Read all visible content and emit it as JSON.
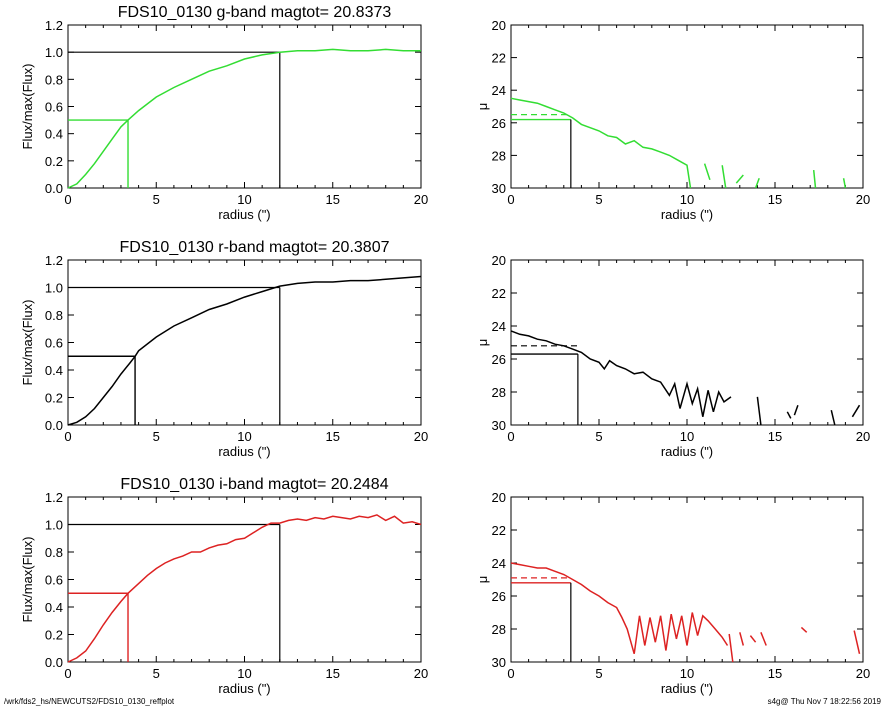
{
  "footer": {
    "path": "/wrk/fds2_hs/NEWCUTS2/FDS10_0130_reffplot",
    "stamp": "s4g@  Thu Nov  7 18:22:56 2019"
  },
  "chart_data": [
    {
      "type": "line",
      "panel": "growth",
      "band": "g",
      "color": "#33dd33",
      "title": "FDS10_0130 g-band  magtot=     20.8373",
      "xlabel": "radius (\")",
      "ylabel": "Flux/max(Flux)",
      "xlim": [
        0,
        20
      ],
      "ylim": [
        0,
        1.2
      ],
      "xticks": [
        "0",
        "5",
        "10",
        "15",
        "20"
      ],
      "yticks": [
        "0.0",
        "0.2",
        "0.4",
        "0.6",
        "0.8",
        "1.0",
        "1.2"
      ],
      "x": [
        0,
        0.5,
        1,
        1.5,
        2,
        2.5,
        3,
        3.4,
        4,
        5,
        6,
        7,
        8,
        9,
        10,
        11,
        12,
        13,
        14,
        15,
        16,
        17,
        18,
        19,
        20
      ],
      "y": [
        0,
        0.03,
        0.1,
        0.18,
        0.27,
        0.36,
        0.45,
        0.5,
        0.57,
        0.67,
        0.74,
        0.8,
        0.86,
        0.9,
        0.95,
        0.98,
        1.0,
        1.01,
        1.01,
        1.02,
        1.01,
        1.01,
        1.02,
        1.01,
        1.01
      ],
      "reff": 3.4,
      "r_full": 12.0
    },
    {
      "type": "line",
      "panel": "profile",
      "band": "g",
      "color": "#33dd33",
      "xlabel": "radius (\")",
      "ylabel": "μ",
      "xlim": [
        0,
        20
      ],
      "ylim": [
        30,
        20
      ],
      "xticks": [
        "0",
        "5",
        "10",
        "15",
        "20"
      ],
      "yticks": [
        "20",
        "22",
        "24",
        "26",
        "28",
        "30"
      ],
      "segments": [
        [
          [
            0,
            24.5
          ],
          [
            0.5,
            24.6
          ],
          [
            1,
            24.7
          ],
          [
            1.5,
            24.8
          ],
          [
            2,
            25.0
          ],
          [
            2.5,
            25.2
          ],
          [
            3,
            25.4
          ],
          [
            3.5,
            25.7
          ],
          [
            4,
            26.1
          ],
          [
            4.5,
            26.3
          ],
          [
            5,
            26.5
          ],
          [
            5.5,
            26.8
          ],
          [
            6,
            26.9
          ],
          [
            6.5,
            27.3
          ],
          [
            7,
            27.1
          ],
          [
            7.5,
            27.5
          ],
          [
            8,
            27.6
          ],
          [
            8.5,
            27.8
          ],
          [
            9,
            28.0
          ],
          [
            9.5,
            28.3
          ],
          [
            10,
            28.6
          ],
          [
            10.2,
            30.0
          ]
        ],
        [
          [
            11,
            28.5
          ],
          [
            11.3,
            29.5
          ]
        ],
        [
          [
            12,
            28.6
          ],
          [
            12.2,
            30.0
          ]
        ],
        [
          [
            12.8,
            29.7
          ],
          [
            13.2,
            29.2
          ]
        ],
        [
          [
            13.9,
            30.0
          ],
          [
            14.1,
            29.4
          ]
        ],
        [
          [
            17.2,
            28.9
          ],
          [
            17.3,
            30.0
          ]
        ],
        [
          [
            18.9,
            29.4
          ],
          [
            19.0,
            30.0
          ]
        ]
      ],
      "mu_mean": 25.5,
      "mu_eff": 25.8,
      "reff": 3.4
    },
    {
      "type": "line",
      "panel": "growth",
      "band": "r",
      "color": "#000000",
      "title": "FDS10_0130 r-band  magtot=     20.3807",
      "xlabel": "radius (\")",
      "ylabel": "Flux/max(Flux)",
      "xlim": [
        0,
        20
      ],
      "ylim": [
        0,
        1.2
      ],
      "xticks": [
        "0",
        "5",
        "10",
        "15",
        "20"
      ],
      "yticks": [
        "0.0",
        "0.2",
        "0.4",
        "0.6",
        "0.8",
        "1.0",
        "1.2"
      ],
      "x": [
        0,
        0.5,
        1,
        1.5,
        2,
        2.5,
        3,
        3.5,
        3.8,
        4,
        5,
        6,
        7,
        8,
        9,
        10,
        11,
        12,
        13,
        14,
        15,
        16,
        17,
        18,
        19,
        20
      ],
      "y": [
        0,
        0.02,
        0.06,
        0.12,
        0.2,
        0.28,
        0.37,
        0.45,
        0.5,
        0.54,
        0.64,
        0.72,
        0.78,
        0.84,
        0.88,
        0.93,
        0.97,
        1.01,
        1.03,
        1.04,
        1.04,
        1.05,
        1.05,
        1.06,
        1.07,
        1.08
      ],
      "reff": 3.8,
      "r_full": 12.0
    },
    {
      "type": "line",
      "panel": "profile",
      "band": "r",
      "color": "#000000",
      "xlabel": "radius (\")",
      "ylabel": "μ",
      "xlim": [
        0,
        20
      ],
      "ylim": [
        30,
        20
      ],
      "xticks": [
        "0",
        "5",
        "10",
        "15",
        "20"
      ],
      "yticks": [
        "20",
        "22",
        "24",
        "26",
        "28",
        "30"
      ],
      "segments": [
        [
          [
            0,
            24.3
          ],
          [
            0.5,
            24.5
          ],
          [
            1,
            24.6
          ],
          [
            1.5,
            24.8
          ],
          [
            2,
            24.9
          ],
          [
            2.5,
            25.1
          ],
          [
            3,
            25.2
          ],
          [
            3.5,
            25.4
          ],
          [
            4,
            25.6
          ],
          [
            4.5,
            26.0
          ],
          [
            5,
            26.2
          ],
          [
            5.3,
            26.6
          ],
          [
            5.6,
            26.1
          ],
          [
            6,
            26.4
          ],
          [
            6.5,
            26.6
          ],
          [
            7,
            26.9
          ],
          [
            7.5,
            26.8
          ],
          [
            8,
            27.2
          ],
          [
            8.5,
            27.4
          ],
          [
            9,
            28.2
          ],
          [
            9.3,
            27.5
          ],
          [
            9.6,
            29.0
          ],
          [
            10,
            27.5
          ],
          [
            10.3,
            28.7
          ],
          [
            10.6,
            27.8
          ],
          [
            10.9,
            29.5
          ],
          [
            11.2,
            27.9
          ],
          [
            11.5,
            29.2
          ],
          [
            11.8,
            28.0
          ],
          [
            12.1,
            28.6
          ],
          [
            12.5,
            28.3
          ]
        ],
        [
          [
            14.0,
            28.3
          ],
          [
            14.2,
            30.0
          ]
        ],
        [
          [
            15.7,
            29.2
          ],
          [
            15.9,
            29.6
          ]
        ],
        [
          [
            16.1,
            29.4
          ],
          [
            16.3,
            28.8
          ]
        ],
        [
          [
            18.2,
            29.1
          ],
          [
            18.4,
            30.0
          ]
        ],
        [
          [
            19.4,
            29.5
          ],
          [
            19.8,
            28.8
          ]
        ]
      ],
      "mu_mean": 25.2,
      "mu_eff": 25.7,
      "reff": 3.8
    },
    {
      "type": "line",
      "panel": "growth",
      "band": "i",
      "color": "#dd2222",
      "title": "FDS10_0130 i-band  magtot=     20.2484",
      "xlabel": "radius (\")",
      "ylabel": "Flux/max(Flux)",
      "xlim": [
        0,
        20
      ],
      "ylim": [
        0,
        1.2
      ],
      "xticks": [
        "0",
        "5",
        "10",
        "15",
        "20"
      ],
      "yticks": [
        "0.0",
        "0.2",
        "0.4",
        "0.6",
        "0.8",
        "1.0",
        "1.2"
      ],
      "x": [
        0,
        0.5,
        1,
        1.5,
        2,
        2.5,
        3,
        3.4,
        4,
        4.5,
        5,
        5.5,
        6,
        6.5,
        7,
        7.5,
        8,
        8.5,
        9,
        9.5,
        10,
        10.5,
        11,
        11.5,
        12,
        12.5,
        13,
        13.5,
        14,
        14.5,
        15,
        15.5,
        16,
        16.5,
        17,
        17.5,
        18,
        18.5,
        19,
        19.5,
        20
      ],
      "y": [
        0,
        0.03,
        0.08,
        0.17,
        0.27,
        0.36,
        0.44,
        0.5,
        0.57,
        0.63,
        0.68,
        0.72,
        0.75,
        0.77,
        0.8,
        0.8,
        0.83,
        0.85,
        0.86,
        0.89,
        0.9,
        0.94,
        0.98,
        1.01,
        1.01,
        1.03,
        1.04,
        1.03,
        1.05,
        1.04,
        1.06,
        1.05,
        1.04,
        1.06,
        1.05,
        1.07,
        1.03,
        1.06,
        1.01,
        1.02,
        1.0
      ],
      "reff": 3.4,
      "r_full": 12.0
    },
    {
      "type": "line",
      "panel": "profile",
      "band": "i",
      "color": "#dd2222",
      "xlabel": "radius (\")",
      "ylabel": "μ",
      "xlim": [
        0,
        20
      ],
      "ylim": [
        30,
        20
      ],
      "xticks": [
        "0",
        "5",
        "10",
        "15",
        "20"
      ],
      "yticks": [
        "20",
        "22",
        "24",
        "26",
        "28",
        "30"
      ],
      "segments": [
        [
          [
            0,
            24.0
          ],
          [
            0.5,
            24.1
          ],
          [
            1,
            24.2
          ],
          [
            1.5,
            24.3
          ],
          [
            2,
            24.3
          ],
          [
            2.5,
            24.5
          ],
          [
            3,
            24.7
          ],
          [
            3.5,
            25.0
          ],
          [
            4,
            25.3
          ],
          [
            4.5,
            25.7
          ],
          [
            5,
            26.0
          ],
          [
            5.5,
            26.4
          ],
          [
            6,
            26.7
          ],
          [
            6.3,
            27.3
          ],
          [
            6.6,
            28.0
          ],
          [
            7.0,
            29.5
          ],
          [
            7.3,
            27.2
          ],
          [
            7.6,
            29.0
          ],
          [
            7.9,
            27.3
          ],
          [
            8.2,
            28.8
          ],
          [
            8.5,
            27.2
          ],
          [
            8.8,
            29.3
          ],
          [
            9.1,
            27.1
          ],
          [
            9.4,
            28.6
          ],
          [
            9.7,
            27.2
          ],
          [
            10.0,
            29.0
          ],
          [
            10.3,
            27.0
          ],
          [
            10.6,
            28.4
          ],
          [
            10.9,
            27.2
          ],
          [
            11.2,
            27.5
          ],
          [
            11.6,
            28.0
          ],
          [
            12.0,
            28.5
          ],
          [
            12.3,
            29.0
          ]
        ],
        [
          [
            12.4,
            28.3
          ],
          [
            12.6,
            30.0
          ]
        ],
        [
          [
            13.0,
            28.2
          ],
          [
            13.2,
            29.0
          ]
        ],
        [
          [
            13.6,
            28.4
          ],
          [
            13.9,
            28.8
          ]
        ],
        [
          [
            14.2,
            28.2
          ],
          [
            14.5,
            29.0
          ]
        ],
        [
          [
            16.5,
            27.9
          ],
          [
            16.8,
            28.2
          ]
        ],
        [
          [
            19.5,
            28.1
          ],
          [
            19.8,
            29.5
          ]
        ]
      ],
      "mu_mean": 24.9,
      "mu_eff": 25.2,
      "reff": 3.4
    }
  ]
}
